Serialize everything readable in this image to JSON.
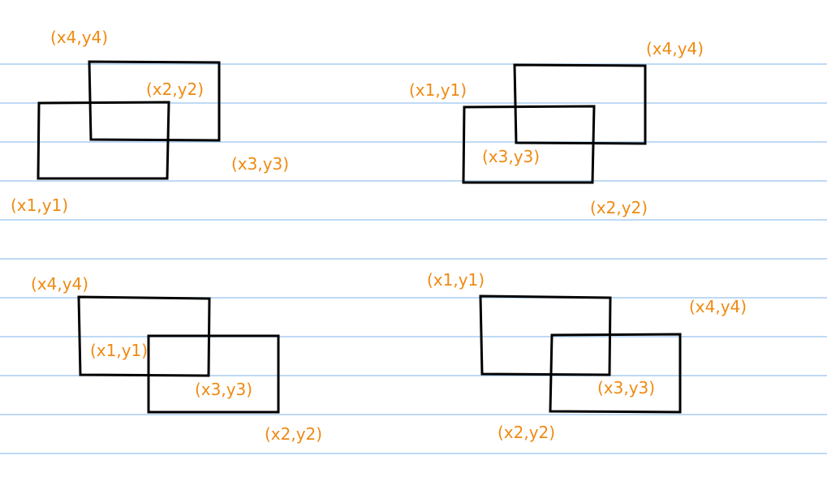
{
  "colors": {
    "ruled_line": "#a9cdf0",
    "rectangle_stroke": "#000000",
    "label": "#ef8a12",
    "background": "#ffffff"
  },
  "panels": [
    {
      "id": "top-left",
      "labels": [
        "(x4,y4)",
        "(x2,y2)",
        "(x3,y3)",
        "(x1,y1)"
      ]
    },
    {
      "id": "top-right",
      "labels": [
        "(x4,y4)",
        "(x1,y1)",
        "(x3,y3)",
        "(x2,y2)"
      ]
    },
    {
      "id": "bottom-left",
      "labels": [
        "(x4,y4)",
        "(x1,y1)",
        "(x3,y3)",
        "(x2,y2)"
      ]
    },
    {
      "id": "bottom-right",
      "labels": [
        "(x1,y1)",
        "(x4,y4)",
        "(x3,y3)",
        "(x2,y2)"
      ]
    }
  ]
}
